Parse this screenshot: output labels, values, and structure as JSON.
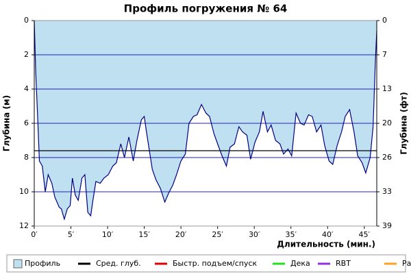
{
  "chart_data": {
    "type": "area",
    "title": "Профиль погружения № 64",
    "xlabel": "Длительность (мин.)",
    "ylabel": "Глубина (м)",
    "y2label": "Глубина (фт)",
    "x": [
      0,
      0.2,
      0.5,
      0.7,
      1.1,
      1.5,
      1.9,
      2.4,
      2.8,
      3.4,
      3.7,
      4.1,
      4.5,
      4.9,
      5.2,
      5.6,
      6.0,
      6.5,
      6.9,
      7.3,
      7.7,
      8.0,
      8.4,
      9.0,
      9.5,
      10.1,
      10.7,
      11.2,
      11.8,
      12.3,
      12.9,
      13.5,
      14.0,
      14.6,
      15.0,
      15.3,
      15.7,
      16.1,
      16.6,
      17.2,
      17.8,
      18.3,
      18.9,
      19.4,
      20.0,
      20.6,
      21.1,
      21.7,
      22.2,
      22.8,
      23.4,
      23.9,
      24.5,
      25.0,
      25.6,
      26.2,
      26.7,
      27.3,
      27.9,
      28.4,
      29.0,
      29.5,
      30.1,
      30.7,
      31.2,
      31.8,
      32.3,
      32.9,
      33.5,
      34.0,
      34.6,
      35.1,
      35.7,
      36.3,
      36.8,
      37.4,
      37.9,
      38.5,
      39.1,
      39.6,
      40.2,
      40.7,
      41.3,
      41.9,
      42.4,
      43.0,
      43.6,
      44.1,
      44.7,
      45.2,
      45.8,
      46.2,
      46.5,
      46.7
    ],
    "series": [
      {
        "name": "Профиль",
        "color": "#bfe0f0",
        "line_color": "#000080",
        "values": [
          0,
          3,
          6,
          8.2,
          8.5,
          10,
          9,
          9.5,
          10.3,
          10.9,
          11,
          11.6,
          11,
          10.8,
          9.2,
          10.2,
          10.5,
          9.2,
          9,
          11.2,
          11.4,
          10.5,
          9.4,
          9.5,
          9.2,
          9,
          8.5,
          8.3,
          7.2,
          8,
          6.8,
          8.2,
          7,
          5.8,
          5.6,
          6.5,
          7.6,
          8.7,
          9.3,
          9.8,
          10.6,
          10.1,
          9.6,
          9,
          8.2,
          7.8,
          6,
          5.6,
          5.5,
          4.9,
          5.4,
          5.6,
          6.6,
          7.2,
          7.9,
          8.5,
          7.4,
          7.2,
          6.2,
          6.5,
          6.7,
          8.1,
          7.1,
          6.5,
          5.3,
          6.5,
          6.1,
          7,
          7.2,
          7.8,
          7.5,
          7.9,
          5.4,
          6,
          6.1,
          5.5,
          5.6,
          6.5,
          6.1,
          7.3,
          8.2,
          8.4,
          7.3,
          6.5,
          5.6,
          5.2,
          6.5,
          7.9,
          8.3,
          8.9,
          8,
          6.2,
          2.5,
          0.6
        ]
      }
    ],
    "reference_lines": [
      {
        "name": "Сред. глуб.",
        "color": "#000000",
        "value": 7.6
      }
    ],
    "legend_extra": [
      {
        "name": "Быстр. подъем/спуск",
        "color": "#e00000"
      },
      {
        "name": "Дека",
        "color": "#20e020"
      },
      {
        "name": "RBT",
        "color": "#9030e0"
      },
      {
        "name": "Раб.",
        "color": "#ffa020"
      }
    ],
    "xlim": [
      0,
      46.7
    ],
    "xticks": [
      {
        "value": 0,
        "label": "0′"
      },
      {
        "value": 5,
        "label": "5′"
      },
      {
        "value": 10,
        "label": "10′"
      },
      {
        "value": 15,
        "label": "15′"
      },
      {
        "value": 20,
        "label": "20′"
      },
      {
        "value": 25,
        "label": "25′"
      },
      {
        "value": 30,
        "label": "30′"
      },
      {
        "value": 35,
        "label": "35′"
      },
      {
        "value": 40,
        "label": "40′"
      },
      {
        "value": 45,
        "label": "45′"
      }
    ],
    "ylim": [
      0,
      12
    ],
    "yticks": [
      0,
      2,
      4,
      6,
      8,
      10,
      12
    ],
    "y2lim": [
      0,
      39.37
    ],
    "y2ticks": [
      {
        "value": 0,
        "label": "0"
      },
      {
        "value": 6.56,
        "label": "7"
      },
      {
        "value": 13.12,
        "label": "13"
      },
      {
        "value": 19.69,
        "label": "20"
      },
      {
        "value": 26.25,
        "label": "26"
      },
      {
        "value": 32.81,
        "label": "33"
      },
      {
        "value": 39.37,
        "label": "39"
      }
    ],
    "y_inverted": true,
    "grid": true,
    "grid_color": "#2020c0",
    "legend_position": "bottom"
  }
}
